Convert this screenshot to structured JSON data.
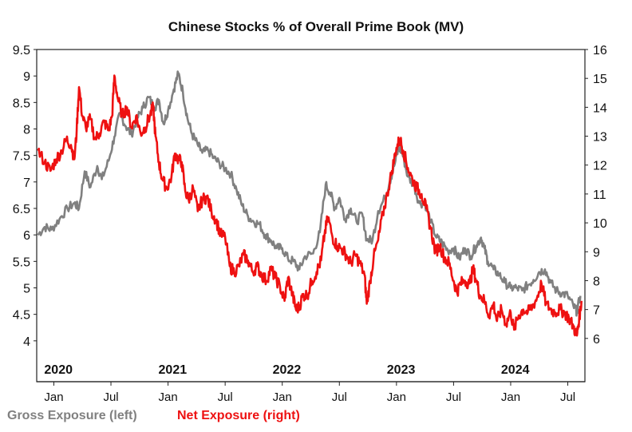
{
  "chart_data": {
    "type": "line",
    "title": "Chinese Stocks % of Overall Prime Book (MV)",
    "x_range": [
      2019.85,
      2024.65
    ],
    "year_labels": [
      {
        "label": "2020",
        "x": 2020.0
      },
      {
        "label": "2021",
        "x": 2021.0
      },
      {
        "label": "2022",
        "x": 2022.0
      },
      {
        "label": "2023",
        "x": 2023.0
      },
      {
        "label": "2024",
        "x": 2024.0
      }
    ],
    "month_ticks": [
      {
        "label": "Jan",
        "x": 2020.0
      },
      {
        "label": "Jul",
        "x": 2020.5
      },
      {
        "label": "Jan",
        "x": 2021.0
      },
      {
        "label": "Jul",
        "x": 2021.5
      },
      {
        "label": "Jan",
        "x": 2022.0
      },
      {
        "label": "Jul",
        "x": 2022.5
      },
      {
        "label": "Jan",
        "x": 2023.0
      },
      {
        "label": "Jul",
        "x": 2023.5
      },
      {
        "label": "Jan",
        "x": 2024.0
      },
      {
        "label": "Jul",
        "x": 2024.5
      }
    ],
    "y_left": {
      "min": 3.5,
      "max": 9.5,
      "ticks": [
        "9.5",
        "9",
        "8.5",
        "8",
        "7.5",
        "7",
        "6.5",
        "6",
        "5.5",
        "5",
        "4.5",
        "4"
      ]
    },
    "y_right": {
      "min": 5,
      "max": 16,
      "ticks": [
        "16",
        "15",
        "14",
        "13",
        "12",
        "11",
        "10",
        "9",
        "8",
        "7",
        "6"
      ]
    },
    "series": [
      {
        "name": "Gross Exposure (left)",
        "axis": "left",
        "color": "#808080",
        "points": [
          [
            2019.86,
            6.0
          ],
          [
            2019.92,
            6.15
          ],
          [
            2019.98,
            6.1
          ],
          [
            2020.05,
            6.3
          ],
          [
            2020.12,
            6.5
          ],
          [
            2020.18,
            6.6
          ],
          [
            2020.22,
            6.5
          ],
          [
            2020.27,
            7.2
          ],
          [
            2020.32,
            6.9
          ],
          [
            2020.38,
            7.3
          ],
          [
            2020.42,
            7.05
          ],
          [
            2020.48,
            7.4
          ],
          [
            2020.53,
            7.85
          ],
          [
            2020.58,
            8.3
          ],
          [
            2020.63,
            8.05
          ],
          [
            2020.68,
            7.9
          ],
          [
            2020.73,
            8.2
          ],
          [
            2020.78,
            8.4
          ],
          [
            2020.83,
            8.6
          ],
          [
            2020.88,
            8.4
          ],
          [
            2020.92,
            8.55
          ],
          [
            2020.96,
            8.1
          ],
          [
            2021.0,
            8.35
          ],
          [
            2021.05,
            8.75
          ],
          [
            2021.09,
            9.05
          ],
          [
            2021.13,
            8.7
          ],
          [
            2021.17,
            8.2
          ],
          [
            2021.21,
            7.9
          ],
          [
            2021.26,
            7.7
          ],
          [
            2021.3,
            7.55
          ],
          [
            2021.35,
            7.6
          ],
          [
            2021.4,
            7.45
          ],
          [
            2021.45,
            7.35
          ],
          [
            2021.5,
            7.25
          ],
          [
            2021.55,
            7.15
          ],
          [
            2021.6,
            6.85
          ],
          [
            2021.65,
            6.55
          ],
          [
            2021.7,
            6.35
          ],
          [
            2021.75,
            6.25
          ],
          [
            2021.8,
            6.2
          ],
          [
            2021.85,
            6.0
          ],
          [
            2021.9,
            5.9
          ],
          [
            2021.95,
            5.75
          ],
          [
            2022.0,
            5.75
          ],
          [
            2022.05,
            5.55
          ],
          [
            2022.1,
            5.5
          ],
          [
            2022.15,
            5.35
          ],
          [
            2022.2,
            5.6
          ],
          [
            2022.27,
            5.65
          ],
          [
            2022.33,
            6.05
          ],
          [
            2022.38,
            6.95
          ],
          [
            2022.42,
            6.8
          ],
          [
            2022.46,
            6.5
          ],
          [
            2022.5,
            6.7
          ],
          [
            2022.55,
            6.3
          ],
          [
            2022.6,
            6.5
          ],
          [
            2022.65,
            6.25
          ],
          [
            2022.7,
            6.4
          ],
          [
            2022.74,
            5.9
          ],
          [
            2022.79,
            5.9
          ],
          [
            2022.84,
            6.45
          ],
          [
            2022.9,
            6.7
          ],
          [
            2022.94,
            7.0
          ],
          [
            2022.98,
            7.3
          ],
          [
            2023.02,
            7.65
          ],
          [
            2023.05,
            7.55
          ],
          [
            2023.1,
            7.1
          ],
          [
            2023.15,
            6.95
          ],
          [
            2023.2,
            6.6
          ],
          [
            2023.25,
            6.6
          ],
          [
            2023.3,
            6.25
          ],
          [
            2023.35,
            5.95
          ],
          [
            2023.4,
            5.85
          ],
          [
            2023.45,
            5.7
          ],
          [
            2023.5,
            5.75
          ],
          [
            2023.55,
            5.55
          ],
          [
            2023.6,
            5.75
          ],
          [
            2023.65,
            5.6
          ],
          [
            2023.7,
            5.8
          ],
          [
            2023.74,
            5.95
          ],
          [
            2023.77,
            5.75
          ],
          [
            2023.8,
            5.5
          ],
          [
            2023.85,
            5.35
          ],
          [
            2023.9,
            5.25
          ],
          [
            2023.95,
            5.1
          ],
          [
            2024.0,
            5.0
          ],
          [
            2024.05,
            5.0
          ],
          [
            2024.1,
            4.95
          ],
          [
            2024.15,
            5.05
          ],
          [
            2024.2,
            5.15
          ],
          [
            2024.25,
            5.3
          ],
          [
            2024.3,
            5.35
          ],
          [
            2024.35,
            5.1
          ],
          [
            2024.4,
            4.95
          ],
          [
            2024.45,
            4.9
          ],
          [
            2024.5,
            4.85
          ],
          [
            2024.55,
            4.65
          ],
          [
            2024.58,
            4.55
          ],
          [
            2024.61,
            4.85
          ]
        ]
      },
      {
        "name": "Net Exposure (right)",
        "axis": "right",
        "color": "#ee1111",
        "points": [
          [
            2019.86,
            12.5
          ],
          [
            2019.92,
            12.1
          ],
          [
            2019.97,
            11.8
          ],
          [
            2020.02,
            12.2
          ],
          [
            2020.07,
            12.5
          ],
          [
            2020.11,
            12.9
          ],
          [
            2020.15,
            12.7
          ],
          [
            2020.18,
            12.2
          ],
          [
            2020.2,
            13.2
          ],
          [
            2020.22,
            14.7
          ],
          [
            2020.25,
            13.7
          ],
          [
            2020.28,
            13.3
          ],
          [
            2020.32,
            13.6
          ],
          [
            2020.36,
            12.9
          ],
          [
            2020.4,
            13.1
          ],
          [
            2020.44,
            13.5
          ],
          [
            2020.48,
            13.2
          ],
          [
            2020.51,
            13.7
          ],
          [
            2020.53,
            15.1
          ],
          [
            2020.56,
            14.3
          ],
          [
            2020.6,
            13.7
          ],
          [
            2020.64,
            14.0
          ],
          [
            2020.68,
            13.3
          ],
          [
            2020.72,
            13.7
          ],
          [
            2020.76,
            13.1
          ],
          [
            2020.8,
            13.3
          ],
          [
            2020.84,
            13.7
          ],
          [
            2020.87,
            14.0
          ],
          [
            2020.89,
            13.0
          ],
          [
            2020.92,
            12.1
          ],
          [
            2020.95,
            11.5
          ],
          [
            2020.99,
            11.2
          ],
          [
            2021.03,
            11.6
          ],
          [
            2021.06,
            12.4
          ],
          [
            2021.09,
            12.2
          ],
          [
            2021.12,
            12.1
          ],
          [
            2021.15,
            11.1
          ],
          [
            2021.18,
            10.8
          ],
          [
            2021.22,
            11.2
          ],
          [
            2021.26,
            10.4
          ],
          [
            2021.3,
            10.8
          ],
          [
            2021.34,
            10.9
          ],
          [
            2021.38,
            10.4
          ],
          [
            2021.42,
            10.1
          ],
          [
            2021.46,
            9.6
          ],
          [
            2021.5,
            9.5
          ],
          [
            2021.54,
            8.5
          ],
          [
            2021.58,
            8.3
          ],
          [
            2021.62,
            8.5
          ],
          [
            2021.66,
            8.9
          ],
          [
            2021.7,
            8.7
          ],
          [
            2021.74,
            8.3
          ],
          [
            2021.78,
            8.5
          ],
          [
            2021.82,
            8.2
          ],
          [
            2021.86,
            8.0
          ],
          [
            2021.9,
            8.4
          ],
          [
            2021.94,
            8.1
          ],
          [
            2021.98,
            7.8
          ],
          [
            2022.02,
            7.3
          ],
          [
            2022.05,
            8.1
          ],
          [
            2022.09,
            7.5
          ],
          [
            2022.12,
            7.0
          ],
          [
            2022.15,
            7.1
          ],
          [
            2022.18,
            7.5
          ],
          [
            2022.22,
            7.5
          ],
          [
            2022.26,
            8.0
          ],
          [
            2022.3,
            8.3
          ],
          [
            2022.34,
            8.7
          ],
          [
            2022.37,
            9.6
          ],
          [
            2022.4,
            10.2
          ],
          [
            2022.44,
            9.5
          ],
          [
            2022.48,
            9.2
          ],
          [
            2022.52,
            9.1
          ],
          [
            2022.56,
            8.9
          ],
          [
            2022.6,
            8.6
          ],
          [
            2022.64,
            8.9
          ],
          [
            2022.68,
            8.6
          ],
          [
            2022.72,
            8.2
          ],
          [
            2022.74,
            7.2
          ],
          [
            2022.77,
            8.0
          ],
          [
            2022.8,
            8.8
          ],
          [
            2022.84,
            9.4
          ],
          [
            2022.88,
            10.3
          ],
          [
            2022.92,
            11.0
          ],
          [
            2022.96,
            11.8
          ],
          [
            2023.0,
            12.6
          ],
          [
            2023.03,
            12.9
          ],
          [
            2023.06,
            12.5
          ],
          [
            2023.1,
            11.9
          ],
          [
            2023.14,
            11.5
          ],
          [
            2023.18,
            11.2
          ],
          [
            2023.22,
            11.0
          ],
          [
            2023.26,
            10.5
          ],
          [
            2023.3,
            9.8
          ],
          [
            2023.34,
            9.0
          ],
          [
            2023.38,
            9.2
          ],
          [
            2023.42,
            8.8
          ],
          [
            2023.46,
            8.6
          ],
          [
            2023.5,
            8.0
          ],
          [
            2023.53,
            7.6
          ],
          [
            2023.56,
            7.9
          ],
          [
            2023.6,
            8.0
          ],
          [
            2023.64,
            7.9
          ],
          [
            2023.67,
            8.4
          ],
          [
            2023.7,
            8.0
          ],
          [
            2023.73,
            7.5
          ],
          [
            2023.77,
            7.3
          ],
          [
            2023.81,
            6.8
          ],
          [
            2023.85,
            7.2
          ],
          [
            2023.88,
            6.6
          ],
          [
            2023.92,
            7.0
          ],
          [
            2023.96,
            6.5
          ],
          [
            2024.0,
            6.9
          ],
          [
            2024.03,
            6.3
          ],
          [
            2024.07,
            6.8
          ],
          [
            2024.11,
            7.0
          ],
          [
            2024.15,
            6.9
          ],
          [
            2024.19,
            7.1
          ],
          [
            2024.23,
            7.4
          ],
          [
            2024.27,
            7.9
          ],
          [
            2024.31,
            7.2
          ],
          [
            2024.35,
            7.0
          ],
          [
            2024.39,
            6.9
          ],
          [
            2024.43,
            7.0
          ],
          [
            2024.47,
            6.9
          ],
          [
            2024.51,
            6.7
          ],
          [
            2024.55,
            6.4
          ],
          [
            2024.58,
            6.1
          ],
          [
            2024.6,
            6.7
          ],
          [
            2024.62,
            7.3
          ]
        ]
      }
    ]
  },
  "legend": {
    "gross_label": "Gross Exposure (left)",
    "gross_color": "#808080",
    "net_label": "Net Exposure (right)",
    "net_color": "#ee1111"
  }
}
